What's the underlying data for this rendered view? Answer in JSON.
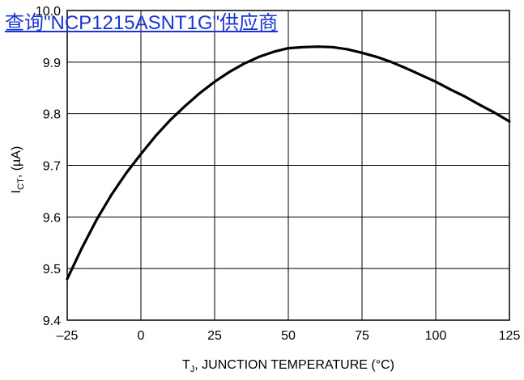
{
  "overlay_link": {
    "text": "查询\"NCP1215ASNT1G\"供应商"
  },
  "chart_data": {
    "type": "line",
    "title": "",
    "xlabel": {
      "main": "T",
      "sub": "J",
      "rest": ", JUNCTION TEMPERATURE (°C)"
    },
    "ylabel": {
      "main": "I",
      "sub": "CT",
      "rest": ", (µA)"
    },
    "xlim": [
      -25,
      125
    ],
    "ylim": [
      9.4,
      10.0
    ],
    "x_ticks": [
      -25,
      0,
      25,
      50,
      75,
      100,
      125
    ],
    "x_tick_labels": [
      "–25",
      "0",
      "25",
      "50",
      "75",
      "100",
      "125"
    ],
    "y_ticks": [
      9.4,
      9.5,
      9.6,
      9.7,
      9.8,
      9.9,
      10.0
    ],
    "y_tick_labels": [
      "9.4",
      "9.5",
      "9.6",
      "9.7",
      "9.8",
      "9.9",
      "10.0"
    ],
    "grid": true,
    "series": [
      {
        "x": [
          -25,
          -20,
          -15,
          -10,
          -5,
          0,
          5,
          10,
          15,
          20,
          25,
          30,
          35,
          40,
          45,
          50,
          55,
          60,
          65,
          70,
          75,
          80,
          85,
          90,
          95,
          100,
          105,
          110,
          115,
          120,
          125
        ],
        "y": [
          9.48,
          9.54,
          9.595,
          9.643,
          9.685,
          9.722,
          9.757,
          9.788,
          9.815,
          9.84,
          9.862,
          9.881,
          9.897,
          9.91,
          9.92,
          9.927,
          9.929,
          9.93,
          9.929,
          9.925,
          9.918,
          9.91,
          9.9,
          9.888,
          9.875,
          9.862,
          9.847,
          9.833,
          9.817,
          9.802,
          9.785
        ]
      }
    ]
  }
}
